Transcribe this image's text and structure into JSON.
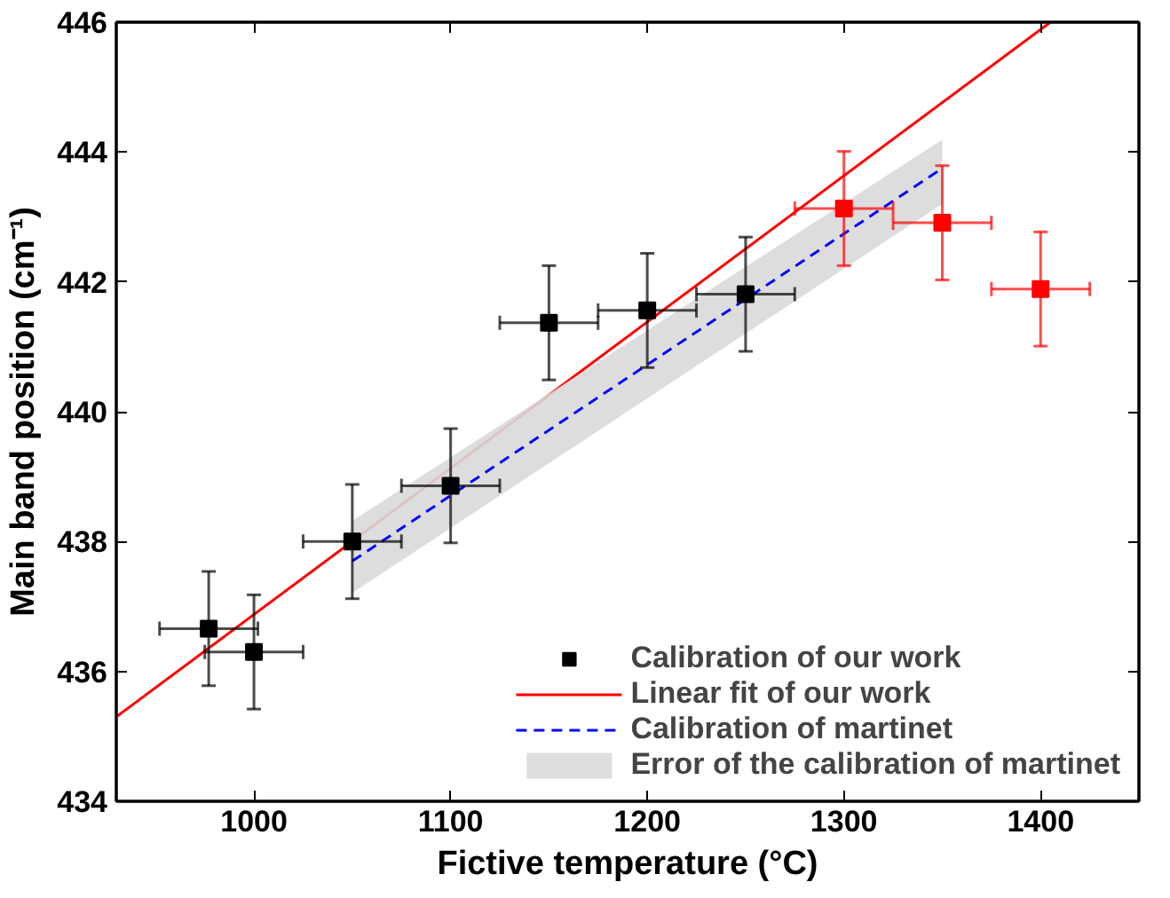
{
  "chart_data": {
    "type": "scatter",
    "xlabel": "Fictive temperature (°C)",
    "ylabel": "Main band position (cm⁻¹)",
    "xlim": [
      930,
      1450
    ],
    "ylim": [
      434,
      446
    ],
    "xticks": [
      1000,
      1100,
      1200,
      1300,
      1400
    ],
    "yticks": [
      434,
      436,
      438,
      440,
      442,
      444,
      446
    ],
    "grid": false,
    "legend": "bottom right",
    "series": [
      {
        "name": "Calibration of our work",
        "marker": "square",
        "color": "#000000",
        "x": [
          977,
          1000,
          1050,
          1100,
          1150,
          1200,
          1250
        ],
        "values": [
          436.66,
          436.3,
          438.0,
          438.86,
          441.37,
          441.56,
          441.81
        ],
        "errors": [
          0.88,
          0.88,
          0.88,
          0.88,
          0.88,
          0.88,
          0.88
        ],
        "xerrors": [
          25,
          25,
          25,
          25,
          25,
          25,
          25
        ]
      },
      {
        "marker": "square",
        "color": "#ff0000",
        "x": [
          1300,
          1350,
          1400
        ],
        "values": [
          443.13,
          442.91,
          441.89
        ],
        "errors": [
          0.88,
          0.88,
          0.88
        ],
        "xerrors": [
          25,
          25,
          25
        ]
      },
      {
        "name": "Linear fit of our work",
        "type": "line",
        "line_style": "solid",
        "color": "#ff0000",
        "x": [
          930,
          1405
        ],
        "values": [
          435.3,
          446.0
        ]
      },
      {
        "name": "Calibration of martinet",
        "type": "line",
        "line_style": "dashed",
        "color": "#0000ff",
        "x": [
          1050,
          1350
        ],
        "values": [
          437.7,
          443.75
        ],
        "lower": [
          437.21,
          443.2
        ],
        "upper": [
          438.32,
          444.19
        ]
      },
      {
        "name": "Error of the calibration of martinet",
        "type": "area",
        "color": "#d9d9d9"
      }
    ]
  }
}
